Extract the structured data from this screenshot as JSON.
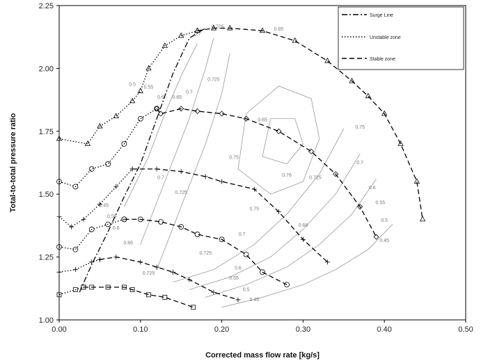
{
  "chart_data": {
    "type": "line",
    "title": "",
    "xlabel": "Corrected mass flow rate [kg/s]",
    "ylabel": "Total-to-total pressure ratio",
    "xlim": [
      0.0,
      0.5
    ],
    "ylim": [
      1.0,
      2.25
    ],
    "x_ticks": [
      "0.00",
      "0.10",
      "0.20",
      "0.30",
      "0.40",
      "0.50"
    ],
    "y_ticks": [
      "1.00",
      "1.25",
      "1.50",
      "1.75",
      "2.00",
      "2.25"
    ],
    "grid": false,
    "legend_position": "top-right",
    "legend": [
      {
        "label": "Surge Line",
        "style": "dash-dot"
      },
      {
        "label": "Unstable zone",
        "style": "dotted"
      },
      {
        "label": "Stable zone",
        "style": "dashed"
      }
    ],
    "series": [
      {
        "name": "Surge Line",
        "style": "dash-dot",
        "marker": "none",
        "points": [
          [
            0.025,
            1.11
          ],
          [
            0.04,
            1.22
          ],
          [
            0.06,
            1.35
          ],
          [
            0.08,
            1.49
          ],
          [
            0.1,
            1.62
          ],
          [
            0.12,
            1.8
          ],
          [
            0.14,
            1.98
          ],
          [
            0.16,
            2.12
          ],
          [
            0.18,
            2.16
          ]
        ]
      },
      {
        "name": "Unstable zone",
        "style": "dotted",
        "marker": "triangle",
        "points": [
          [
            0.0,
            1.72
          ],
          [
            0.035,
            1.7
          ],
          [
            0.05,
            1.77
          ],
          [
            0.07,
            1.81
          ],
          [
            0.09,
            1.87
          ],
          [
            0.1,
            1.91
          ],
          [
            0.11,
            2.0
          ],
          [
            0.13,
            2.09
          ],
          [
            0.15,
            2.13
          ],
          [
            0.17,
            2.15
          ]
        ]
      },
      {
        "name": "Unstable zone",
        "style": "dotted",
        "marker": "circle",
        "points": [
          [
            0.0,
            1.55
          ],
          [
            0.02,
            1.53
          ],
          [
            0.04,
            1.6
          ],
          [
            0.06,
            1.62
          ],
          [
            0.08,
            1.7
          ],
          [
            0.1,
            1.8
          ],
          [
            0.12,
            1.84
          ]
        ]
      },
      {
        "name": "Unstable zone",
        "style": "dotted",
        "marker": "plus",
        "points": [
          [
            0.0,
            1.41
          ],
          [
            0.015,
            1.37
          ],
          [
            0.03,
            1.4
          ],
          [
            0.05,
            1.46
          ],
          [
            0.07,
            1.53
          ],
          [
            0.09,
            1.6
          ]
        ]
      },
      {
        "name": "Unstable zone",
        "style": "dotted",
        "marker": "circle",
        "points": [
          [
            0.0,
            1.29
          ],
          [
            0.02,
            1.28
          ],
          [
            0.04,
            1.36
          ],
          [
            0.06,
            1.38
          ],
          [
            0.08,
            1.4
          ]
        ]
      },
      {
        "name": "Unstable zone",
        "style": "dotted",
        "marker": "plus",
        "points": [
          [
            0.0,
            1.19
          ],
          [
            0.02,
            1.2
          ],
          [
            0.04,
            1.23
          ],
          [
            0.05,
            1.24
          ]
        ]
      },
      {
        "name": "Unstable zone",
        "style": "dotted",
        "marker": "square",
        "points": [
          [
            0.0,
            1.1
          ],
          [
            0.02,
            1.12
          ],
          [
            0.03,
            1.13
          ]
        ]
      },
      {
        "name": "Stable zone",
        "style": "dashed",
        "marker": "triangle",
        "points": [
          [
            0.17,
            2.15
          ],
          [
            0.19,
            2.16
          ],
          [
            0.21,
            2.16
          ],
          [
            0.25,
            2.15
          ],
          [
            0.29,
            2.11
          ],
          [
            0.33,
            2.03
          ],
          [
            0.36,
            1.95
          ],
          [
            0.38,
            1.89
          ],
          [
            0.4,
            1.82
          ],
          [
            0.42,
            1.7
          ],
          [
            0.44,
            1.55
          ],
          [
            0.447,
            1.4
          ]
        ]
      },
      {
        "name": "Stable zone",
        "style": "dashed",
        "marker": "diamond",
        "points": [
          [
            0.12,
            1.84
          ],
          [
            0.125,
            1.82
          ],
          [
            0.15,
            1.84
          ],
          [
            0.17,
            1.83
          ],
          [
            0.2,
            1.82
          ],
          [
            0.23,
            1.8
          ],
          [
            0.27,
            1.75
          ],
          [
            0.31,
            1.67
          ],
          [
            0.34,
            1.58
          ],
          [
            0.37,
            1.45
          ],
          [
            0.39,
            1.33
          ]
        ]
      },
      {
        "name": "Stable zone",
        "style": "dashed",
        "marker": "plus",
        "points": [
          [
            0.09,
            1.6
          ],
          [
            0.12,
            1.6
          ],
          [
            0.15,
            1.59
          ],
          [
            0.18,
            1.57
          ],
          [
            0.2,
            1.55
          ],
          [
            0.24,
            1.52
          ],
          [
            0.27,
            1.43
          ],
          [
            0.3,
            1.32
          ],
          [
            0.33,
            1.23
          ]
        ]
      },
      {
        "name": "Stable zone",
        "style": "dashed",
        "marker": "circle",
        "points": [
          [
            0.08,
            1.4
          ],
          [
            0.1,
            1.4
          ],
          [
            0.125,
            1.39
          ],
          [
            0.15,
            1.37
          ],
          [
            0.17,
            1.34
          ],
          [
            0.2,
            1.32
          ],
          [
            0.23,
            1.26
          ],
          [
            0.25,
            1.19
          ],
          [
            0.28,
            1.14
          ]
        ]
      },
      {
        "name": "Stable zone",
        "style": "dashed",
        "marker": "plus",
        "points": [
          [
            0.05,
            1.24
          ],
          [
            0.07,
            1.25
          ],
          [
            0.1,
            1.23
          ],
          [
            0.12,
            1.21
          ],
          [
            0.14,
            1.19
          ],
          [
            0.16,
            1.16
          ],
          [
            0.19,
            1.11
          ],
          [
            0.22,
            1.08
          ]
        ]
      },
      {
        "name": "Stable zone",
        "style": "dashed",
        "marker": "square",
        "points": [
          [
            0.03,
            1.13
          ],
          [
            0.04,
            1.13
          ],
          [
            0.06,
            1.13
          ],
          [
            0.08,
            1.13
          ],
          [
            0.09,
            1.12
          ],
          [
            0.11,
            1.1
          ],
          [
            0.13,
            1.09
          ],
          [
            0.165,
            1.05
          ]
        ]
      }
    ],
    "efficiency_contours": [
      {
        "label": "0.45",
        "points": [
          [
            0.2,
            1.05
          ],
          [
            0.25,
            1.09
          ],
          [
            0.3,
            1.14
          ],
          [
            0.34,
            1.2
          ],
          [
            0.38,
            1.28
          ],
          [
            0.41,
            1.38
          ]
        ]
      },
      {
        "label": "0.5",
        "points": [
          [
            0.18,
            1.09
          ],
          [
            0.23,
            1.14
          ],
          [
            0.28,
            1.21
          ],
          [
            0.32,
            1.3
          ],
          [
            0.36,
            1.42
          ],
          [
            0.39,
            1.56
          ]
        ]
      },
      {
        "label": "0.55",
        "points": [
          [
            0.16,
            1.12
          ],
          [
            0.21,
            1.17
          ],
          [
            0.26,
            1.25
          ],
          [
            0.3,
            1.36
          ],
          [
            0.34,
            1.5
          ],
          [
            0.37,
            1.66
          ]
        ]
      },
      {
        "label": "0.6",
        "points": [
          [
            0.14,
            1.15
          ],
          [
            0.19,
            1.2
          ],
          [
            0.24,
            1.3
          ],
          [
            0.28,
            1.42
          ],
          [
            0.32,
            1.58
          ],
          [
            0.35,
            1.76
          ]
        ]
      },
      {
        "label": "0.65",
        "points": [
          [
            0.08,
            1.45
          ],
          [
            0.11,
            1.65
          ],
          [
            0.13,
            1.82
          ],
          [
            0.15,
            1.97
          ],
          [
            0.17,
            2.1
          ]
        ]
      },
      {
        "label": "0.7",
        "points": [
          [
            0.1,
            1.3
          ],
          [
            0.13,
            1.55
          ],
          [
            0.16,
            1.8
          ],
          [
            0.18,
            2.0
          ],
          [
            0.19,
            2.12
          ]
        ]
      },
      {
        "label": "0.725",
        "points": [
          [
            0.12,
            1.2
          ],
          [
            0.15,
            1.45
          ],
          [
            0.18,
            1.7
          ],
          [
            0.2,
            1.9
          ],
          [
            0.21,
            2.06
          ]
        ]
      },
      {
        "label": "0.75",
        "points": [
          [
            0.22,
            1.6
          ],
          [
            0.26,
            1.5
          ],
          [
            0.3,
            1.55
          ],
          [
            0.32,
            1.72
          ],
          [
            0.31,
            1.88
          ],
          [
            0.27,
            1.93
          ],
          [
            0.23,
            1.82
          ],
          [
            0.22,
            1.6
          ]
        ]
      },
      {
        "label": "0.76",
        "points": [
          [
            0.25,
            1.65
          ],
          [
            0.28,
            1.62
          ],
          [
            0.3,
            1.7
          ],
          [
            0.29,
            1.8
          ],
          [
            0.26,
            1.8
          ],
          [
            0.25,
            1.65
          ]
        ]
      }
    ],
    "contour_labels": [
      {
        "text": "0.45",
        "x": 0.24,
        "y": 1.075
      },
      {
        "text": "0.5",
        "x": 0.23,
        "y": 1.115
      },
      {
        "text": "0.55",
        "x": 0.215,
        "y": 1.16
      },
      {
        "text": "0.6",
        "x": 0.22,
        "y": 1.2
      },
      {
        "text": "0.7",
        "x": 0.225,
        "y": 1.335
      },
      {
        "text": "0.725",
        "x": 0.18,
        "y": 1.26
      },
      {
        "text": "0.725",
        "x": 0.11,
        "y": 1.18
      },
      {
        "text": "0.75",
        "x": 0.24,
        "y": 1.435
      },
      {
        "text": "0.68",
        "x": 0.3,
        "y": 1.37
      },
      {
        "text": "0.725",
        "x": 0.315,
        "y": 1.56
      },
      {
        "text": "0.76",
        "x": 0.28,
        "y": 1.57
      },
      {
        "text": "0.75",
        "x": 0.215,
        "y": 1.64
      },
      {
        "text": "0.75",
        "x": 0.37,
        "y": 1.76
      },
      {
        "text": "0.7",
        "x": 0.37,
        "y": 1.62
      },
      {
        "text": "0.6",
        "x": 0.385,
        "y": 1.52
      },
      {
        "text": "0.55",
        "x": 0.395,
        "y": 1.46
      },
      {
        "text": "0.5",
        "x": 0.4,
        "y": 1.39
      },
      {
        "text": "0.45",
        "x": 0.4,
        "y": 1.31
      },
      {
        "text": "0.7",
        "x": 0.125,
        "y": 1.56
      },
      {
        "text": "0.725",
        "x": 0.15,
        "y": 1.5
      },
      {
        "text": "0.65",
        "x": 0.085,
        "y": 1.3
      },
      {
        "text": "0.6",
        "x": 0.07,
        "y": 1.36
      },
      {
        "text": "0.55",
        "x": 0.065,
        "y": 1.405
      },
      {
        "text": "0.45",
        "x": 0.055,
        "y": 1.45
      },
      {
        "text": "0.5",
        "x": 0.09,
        "y": 1.93
      },
      {
        "text": "0.55",
        "x": 0.11,
        "y": 1.92
      },
      {
        "text": "0.6",
        "x": 0.125,
        "y": 1.88
      },
      {
        "text": "0.65",
        "x": 0.145,
        "y": 1.88
      },
      {
        "text": "0.7",
        "x": 0.16,
        "y": 1.9
      },
      {
        "text": "0.725",
        "x": 0.19,
        "y": 1.95
      },
      {
        "text": "0.7",
        "x": 0.17,
        "y": 2.13
      },
      {
        "text": "0.725",
        "x": 0.195,
        "y": 2.16
      },
      {
        "text": "0.65",
        "x": 0.27,
        "y": 2.15
      },
      {
        "text": "0.65",
        "x": 0.25,
        "y": 1.79
      }
    ],
    "colors": {
      "lines": "#000000",
      "contours": "#8a8a8a"
    }
  }
}
